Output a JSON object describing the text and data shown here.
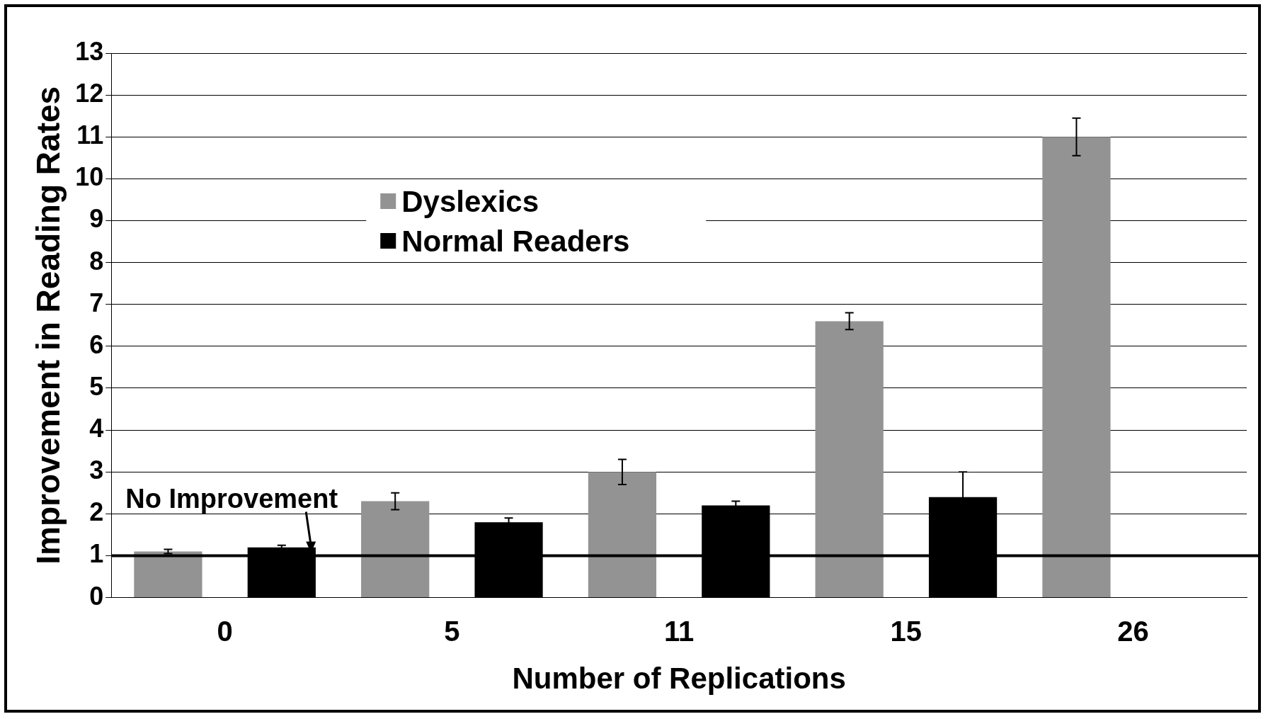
{
  "chart_data": {
    "type": "bar",
    "xlabel": "Number of Replications",
    "ylabel": "Improvement in Reading Rates",
    "categories": [
      "0",
      "5",
      "11",
      "15",
      "26"
    ],
    "series": [
      {
        "name": "Dyslexics",
        "color": "#939393",
        "values": [
          1.1,
          2.3,
          3.0,
          6.6,
          11.0
        ],
        "errors": [
          0.05,
          0.2,
          0.3,
          0.2,
          0.45
        ]
      },
      {
        "name": "Normal Readers",
        "color": "#000000",
        "values": [
          1.2,
          1.8,
          2.2,
          2.4,
          null
        ],
        "errors": [
          0.05,
          0.1,
          0.1,
          0.6,
          null
        ]
      }
    ],
    "ylim": [
      0,
      13
    ],
    "yticks": [
      0,
      1,
      2,
      3,
      4,
      5,
      6,
      7,
      8,
      9,
      10,
      11,
      12,
      13
    ],
    "grid": "y",
    "legend": "top left",
    "ref_lines": [
      {
        "axis": "y",
        "value": 1,
        "label": "No Improvement",
        "color": "#000000"
      }
    ]
  }
}
